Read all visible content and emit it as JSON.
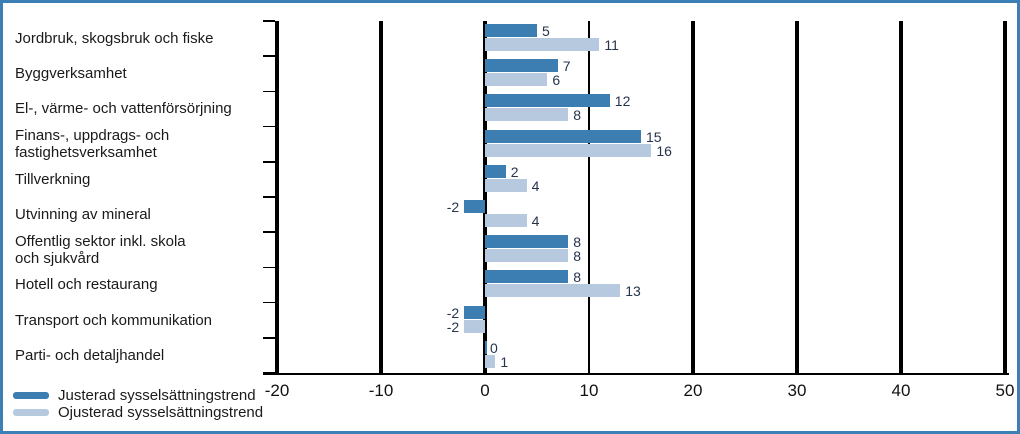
{
  "chart_data": {
    "type": "bar",
    "orientation": "horizontal",
    "title": "",
    "xlabel": "",
    "ylabel": "",
    "xlim": [
      -20,
      50
    ],
    "x_ticks": [
      -20,
      -10,
      0,
      10,
      20,
      30,
      40,
      50
    ],
    "grid": "vertical",
    "value_labels": true,
    "legend_position": "bottom-left",
    "categories": [
      [
        "Jordbruk, skogsbruk och fiske"
      ],
      [
        "Byggverksamhet"
      ],
      [
        "El-, värme- och vattenförsörjning"
      ],
      [
        "Finans-, uppdrags- och",
        "fastighetsverksamhet"
      ],
      [
        "Tillverkning"
      ],
      [
        "Utvinning av mineral"
      ],
      [
        "Offentlig sektor inkl. skola",
        "och sjukvård"
      ],
      [
        "Hotell och restaurang"
      ],
      [
        "Transport och kommunikation"
      ],
      [
        "Parti- och detaljhandel"
      ]
    ],
    "series": [
      {
        "name": "Justerad sysselsättningstrend",
        "color": "#3c7eb1",
        "values": [
          5,
          7,
          12,
          15,
          2,
          -2,
          8,
          8,
          -2,
          0
        ]
      },
      {
        "name": "Ojusterad sysselsättningstrend",
        "color": "#b6c9de",
        "values": [
          11,
          6,
          8,
          16,
          4,
          4,
          8,
          13,
          -2,
          1
        ]
      }
    ]
  },
  "colors": {
    "frame_border": "#3b7fb4",
    "axis": "#000000",
    "value_label_text": "#26344c",
    "category_text": "#1a1a1a"
  }
}
